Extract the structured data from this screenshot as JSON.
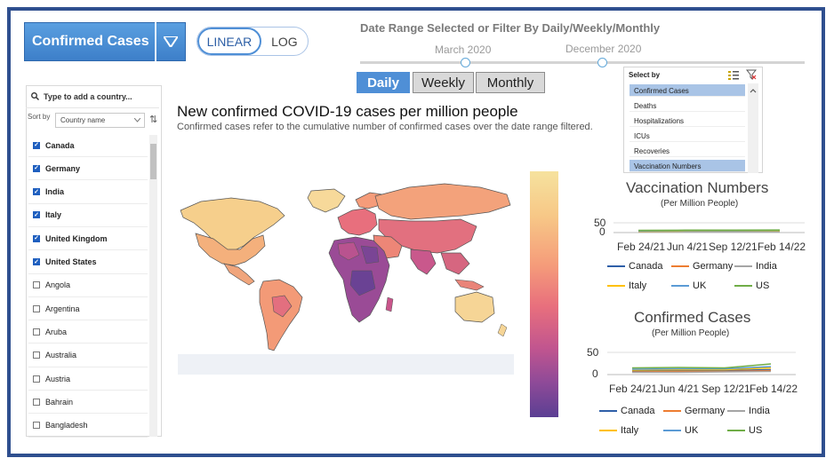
{
  "header": {
    "metric_label": "Confirmed Cases",
    "scale_options": [
      "LINEAR",
      "LOG"
    ],
    "scale_active": "LINEAR",
    "date_range_title": "Date Range Selected or Filter By Daily/Weekly/Monthly",
    "date_start": "March 2020",
    "date_end": "December 2020",
    "freq_options": [
      "Daily",
      "Weekly",
      "Monthly"
    ],
    "freq_active": "Daily"
  },
  "select_by": {
    "title": "Select by",
    "items": [
      "Confirmed Cases",
      "Deaths",
      "Hospitalizations",
      "ICUs",
      "Recoveries",
      "Vaccination Numbers"
    ],
    "selected": [
      "Confirmed Cases",
      "Vaccination Numbers"
    ]
  },
  "country_list": {
    "search_placeholder": "Type to add a country...",
    "sort_label": "Sort by",
    "sort_value": "Country name",
    "countries": [
      {
        "name": "Canada",
        "checked": true
      },
      {
        "name": "Germany",
        "checked": true
      },
      {
        "name": "India",
        "checked": true
      },
      {
        "name": "Italy",
        "checked": true
      },
      {
        "name": "United Kingdom",
        "checked": true
      },
      {
        "name": "United States",
        "checked": true
      },
      {
        "name": "Angola",
        "checked": false
      },
      {
        "name": "Argentina",
        "checked": false
      },
      {
        "name": "Aruba",
        "checked": false
      },
      {
        "name": "Australia",
        "checked": false
      },
      {
        "name": "Austria",
        "checked": false
      },
      {
        "name": "Bahrain",
        "checked": false
      },
      {
        "name": "Bangladesh",
        "checked": false
      }
    ]
  },
  "map": {
    "title": "New confirmed COVID-19 cases per million people",
    "subtitle": "Confirmed cases refer to the cumulative number of confirmed cases over the date range filtered."
  },
  "chart_data": [
    {
      "type": "line",
      "title": "Vaccination Numbers",
      "subtitle": "(Per Million People)",
      "x": [
        "Feb 24/21",
        "Jun 4/21",
        "Sep 12/21",
        "Feb 14/22"
      ],
      "yticks": [
        0,
        50
      ],
      "ylim": [
        0,
        60
      ],
      "series": [
        {
          "name": "Canada",
          "color": "#2f5fa8",
          "values": [
            6,
            7,
            7,
            8
          ]
        },
        {
          "name": "Germany",
          "color": "#ed7d31",
          "values": [
            5,
            6,
            6,
            6
          ]
        },
        {
          "name": "India",
          "color": "#a5a5a5",
          "values": [
            4,
            5,
            5,
            5
          ]
        },
        {
          "name": "Italy",
          "color": "#ffc000",
          "values": [
            7,
            8,
            9,
            9
          ]
        },
        {
          "name": "UK",
          "color": "#5b9bd5",
          "values": [
            9,
            10,
            10,
            11
          ]
        },
        {
          "name": "US",
          "color": "#70ad47",
          "values": [
            11,
            12,
            12,
            13
          ]
        }
      ]
    },
    {
      "type": "line",
      "title": "Confirmed Cases",
      "subtitle": "(Per Million People)",
      "x": [
        "Feb 24/21",
        "Jun 4/21",
        "Sep 12/21",
        "Feb 14/22"
      ],
      "yticks": [
        0,
        50
      ],
      "ylim": [
        0,
        60
      ],
      "series": [
        {
          "name": "Canada",
          "color": "#2f5fa8",
          "values": [
            8,
            9,
            9,
            11
          ]
        },
        {
          "name": "Germany",
          "color": "#ed7d31",
          "values": [
            6,
            7,
            7,
            9
          ]
        },
        {
          "name": "India",
          "color": "#a5a5a5",
          "values": [
            5,
            5,
            6,
            7
          ]
        },
        {
          "name": "Italy",
          "color": "#ffc000",
          "values": [
            10,
            11,
            11,
            15
          ]
        },
        {
          "name": "UK",
          "color": "#5b9bd5",
          "values": [
            12,
            13,
            13,
            18
          ]
        },
        {
          "name": "US",
          "color": "#70ad47",
          "values": [
            15,
            16,
            15,
            24
          ]
        }
      ]
    }
  ]
}
